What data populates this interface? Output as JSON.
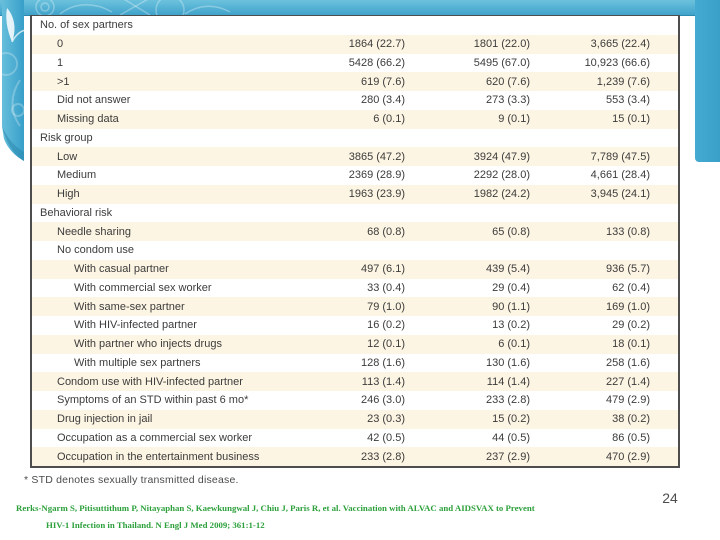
{
  "slide": {
    "page_number": "24",
    "footnote": "* STD denotes sexually transmitted disease.",
    "citation_line1": "Rerks-Ngarm S, Pitisuttithum P, Nitayaphan S, Kaewkungwal J, Chiu J, Paris R, et al. Vaccination with ALVAC and AIDSVAX to Prevent",
    "citation_line2": "HIV-1 Infection in Thailand. N Engl J Med 2009; 361:1-12"
  },
  "colors": {
    "theme_blue": "#45aad2",
    "theme_blue_dark": "#2d88ad",
    "row_cream": "#fdf5e3",
    "row_white": "#ffffff",
    "table_border": "#4d4d4d",
    "table_text": "#3c3c3c",
    "citation_green": "#2da03c"
  },
  "table": {
    "rows": [
      {
        "label": "No. of sex partners",
        "indent": 0,
        "c1": "",
        "c2": "",
        "c3": ""
      },
      {
        "label": "0",
        "indent": 1,
        "c1": "1864 (22.7)",
        "c2": "1801 (22.0)",
        "c3": "3,665 (22.4)"
      },
      {
        "label": "1",
        "indent": 1,
        "c1": "5428 (66.2)",
        "c2": "5495 (67.0)",
        "c3": "10,923 (66.6)"
      },
      {
        "label": ">1",
        "indent": 1,
        "c1": "619 (7.6)",
        "c2": "620 (7.6)",
        "c3": "1,239 (7.6)"
      },
      {
        "label": "Did not answer",
        "indent": 1,
        "c1": "280 (3.4)",
        "c2": "273 (3.3)",
        "c3": "553 (3.4)"
      },
      {
        "label": "Missing data",
        "indent": 1,
        "c1": "6 (0.1)",
        "c2": "9 (0.1)",
        "c3": "15 (0.1)"
      },
      {
        "label": "Risk group",
        "indent": 0,
        "c1": "",
        "c2": "",
        "c3": ""
      },
      {
        "label": "Low",
        "indent": 1,
        "c1": "3865 (47.2)",
        "c2": "3924 (47.9)",
        "c3": "7,789 (47.5)"
      },
      {
        "label": "Medium",
        "indent": 1,
        "c1": "2369 (28.9)",
        "c2": "2292 (28.0)",
        "c3": "4,661 (28.4)"
      },
      {
        "label": "High",
        "indent": 1,
        "c1": "1963 (23.9)",
        "c2": "1982 (24.2)",
        "c3": "3,945 (24.1)"
      },
      {
        "label": "Behavioral risk",
        "indent": 0,
        "c1": "",
        "c2": "",
        "c3": ""
      },
      {
        "label": "Needle sharing",
        "indent": 1,
        "c1": "68 (0.8)",
        "c2": "65 (0.8)",
        "c3": "133 (0.8)"
      },
      {
        "label": "No condom use",
        "indent": 1,
        "c1": "",
        "c2": "",
        "c3": ""
      },
      {
        "label": "With casual partner",
        "indent": 2,
        "c1": "497 (6.1)",
        "c2": "439 (5.4)",
        "c3": "936 (5.7)"
      },
      {
        "label": "With commercial sex worker",
        "indent": 2,
        "c1": "33 (0.4)",
        "c2": "29 (0.4)",
        "c3": "62 (0.4)"
      },
      {
        "label": "With same-sex partner",
        "indent": 2,
        "c1": "79 (1.0)",
        "c2": "90 (1.1)",
        "c3": "169 (1.0)"
      },
      {
        "label": "With HIV-infected partner",
        "indent": 2,
        "c1": "16 (0.2)",
        "c2": "13 (0.2)",
        "c3": "29 (0.2)"
      },
      {
        "label": "With partner who injects drugs",
        "indent": 2,
        "c1": "12 (0.1)",
        "c2": "6 (0.1)",
        "c3": "18 (0.1)"
      },
      {
        "label": "With multiple sex partners",
        "indent": 2,
        "c1": "128 (1.6)",
        "c2": "130 (1.6)",
        "c3": "258 (1.6)"
      },
      {
        "label": "Condom use with HIV-infected partner",
        "indent": 1,
        "c1": "113 (1.4)",
        "c2": "114 (1.4)",
        "c3": "227 (1.4)"
      },
      {
        "label": "Symptoms of an STD within past 6 mo*",
        "indent": 1,
        "c1": "246 (3.0)",
        "c2": "233 (2.8)",
        "c3": "479 (2.9)"
      },
      {
        "label": "Drug injection in jail",
        "indent": 1,
        "c1": "23 (0.3)",
        "c2": "15 (0.2)",
        "c3": "38 (0.2)"
      },
      {
        "label": "Occupation as a commercial sex worker",
        "indent": 1,
        "c1": "42 (0.5)",
        "c2": "44 (0.5)",
        "c3": "86 (0.5)"
      },
      {
        "label": "Occupation in the entertainment business",
        "indent": 1,
        "c1": "233 (2.8)",
        "c2": "237 (2.9)",
        "c3": "470 (2.9)"
      }
    ]
  }
}
